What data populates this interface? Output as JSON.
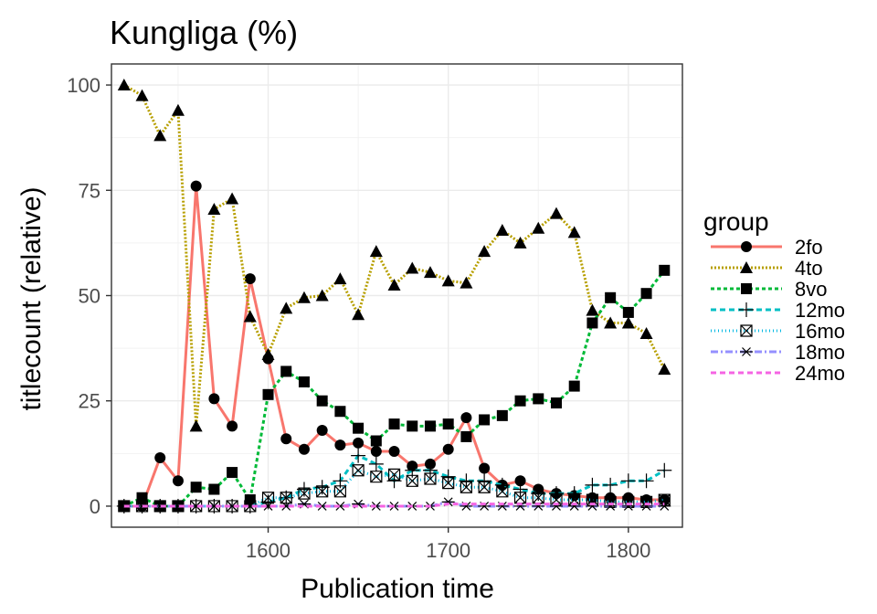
{
  "chart_data": {
    "type": "line",
    "title": "Kungliga (%)",
    "xlabel": "Publication time",
    "ylabel": "titlecount (relative)",
    "xlim": [
      1513,
      1830
    ],
    "ylim": [
      -5,
      105
    ],
    "x_ticks": [
      1600,
      1700,
      1800
    ],
    "y_ticks": [
      0,
      25,
      50,
      75,
      100
    ],
    "grid": true,
    "legend_title": "group",
    "legend_position": "right",
    "x": [
      1520,
      1530,
      1540,
      1550,
      1560,
      1570,
      1580,
      1590,
      1600,
      1610,
      1620,
      1630,
      1640,
      1650,
      1660,
      1670,
      1680,
      1690,
      1700,
      1710,
      1720,
      1730,
      1740,
      1750,
      1760,
      1770,
      1780,
      1790,
      1800,
      1810,
      1820
    ],
    "series": [
      {
        "name": "2fo",
        "color": "#F8766D",
        "dash": "",
        "marker": "circle",
        "values": [
          0,
          0,
          11.5,
          6,
          76,
          25.5,
          19,
          54,
          35,
          16,
          13.5,
          18,
          14.5,
          15,
          13,
          13,
          9.5,
          10,
          13.5,
          21,
          9,
          5,
          6,
          4,
          3,
          2.5,
          2,
          2,
          2,
          1.5,
          1.5
        ]
      },
      {
        "name": "4to",
        "color": "#B79F00",
        "dash": "2,2",
        "marker": "triangle",
        "values": [
          100,
          97.5,
          88,
          94,
          19,
          70.5,
          73,
          45,
          36,
          47,
          49.5,
          50,
          54,
          45.5,
          60.5,
          52.5,
          56.5,
          55.5,
          53.5,
          53,
          60.5,
          65.5,
          62.5,
          66,
          69.5,
          65,
          46.5,
          43.5,
          43.5,
          41,
          32.5
        ]
      },
      {
        "name": "8vo",
        "color": "#00BA38",
        "dash": "4,3",
        "marker": "square",
        "values": [
          0,
          2,
          0,
          0,
          4.5,
          4,
          8,
          1.5,
          26.5,
          32,
          29.5,
          25,
          22.5,
          18.5,
          15.5,
          19.5,
          19,
          19,
          19.5,
          16.5,
          20.5,
          21.5,
          25,
          25.5,
          24.5,
          28.5,
          43.5,
          49.5,
          46,
          50.5,
          56
        ]
      },
      {
        "name": "12mo",
        "color": "#00BFC4",
        "dash": "6,4",
        "marker": "plus",
        "values": [
          0,
          0,
          0,
          0,
          0,
          0,
          0,
          0,
          1,
          2,
          4,
          4.5,
          6,
          12,
          10,
          6,
          8.5,
          8.5,
          7,
          6,
          6,
          5,
          4,
          3,
          3,
          3,
          5,
          5,
          6,
          6,
          8.5
        ]
      },
      {
        "name": "16mo",
        "color": "#00B9E3",
        "dash": "1,3",
        "marker": "boxx",
        "values": [
          0,
          0,
          0,
          0,
          0,
          0,
          0,
          0,
          2,
          2,
          3,
          3.5,
          3.5,
          8.5,
          7,
          7.5,
          6,
          6.5,
          5.5,
          4.5,
          4.5,
          3.5,
          2,
          2,
          1.5,
          1.5,
          1.5,
          1,
          1,
          1,
          1.5
        ]
      },
      {
        "name": "18mo",
        "color": "#9590FF",
        "dash": "8,3,2,3",
        "marker": "asterisk",
        "values": [
          0,
          0,
          0,
          0,
          0,
          0,
          0,
          0,
          0,
          0,
          0.5,
          0,
          0,
          0.5,
          0,
          0,
          0,
          0,
          1,
          0,
          0,
          0,
          0,
          0,
          0,
          0,
          0,
          0,
          0,
          0,
          0
        ]
      },
      {
        "name": "24mo",
        "color": "#F564E3",
        "dash": "6,4",
        "marker": "none",
        "values": [
          0,
          0,
          0,
          0,
          0,
          0,
          0,
          0,
          0,
          0,
          0,
          0,
          0,
          0,
          0,
          0,
          0,
          0,
          0.5,
          0.5,
          0.5,
          0.5,
          0.5,
          0.5,
          0.5,
          0.5,
          0.5,
          0.5,
          0.5,
          0.5,
          0.5
        ]
      }
    ]
  }
}
